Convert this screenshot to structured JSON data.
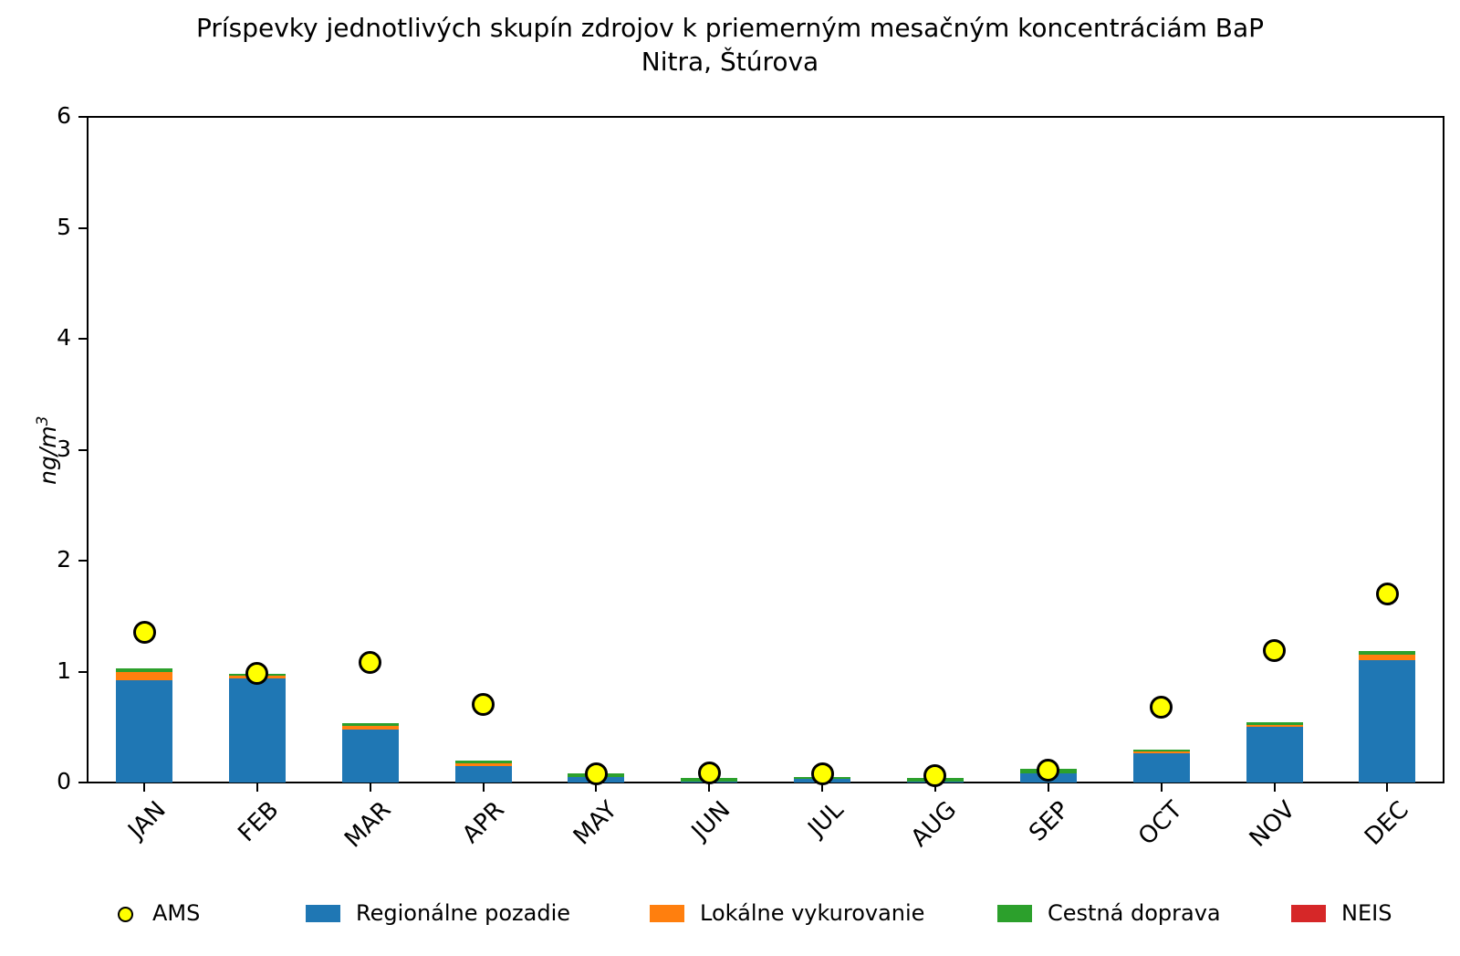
{
  "title": {
    "line1": "Príspevky jednotlivých skupín zdrojov k priemerným mesačným koncentráciám BaP",
    "line2": "Nitra, Štúrova"
  },
  "y_axis": {
    "label": "ng/m³",
    "label_base": "ng/m",
    "label_exp": "3",
    "ticks": [
      0,
      1,
      2,
      3,
      4,
      5,
      6
    ]
  },
  "legend": [
    {
      "label": "AMS",
      "swatch": "circle",
      "color": "#ffff00"
    },
    {
      "label": "Regionálne pozadie",
      "swatch": "rect",
      "color": "#1f77b4"
    },
    {
      "label": "Lokálne vykurovanie",
      "swatch": "rect",
      "color": "#ff7f0e"
    },
    {
      "label": "Cestná doprava",
      "swatch": "rect",
      "color": "#2ca02c"
    },
    {
      "label": "NEIS",
      "swatch": "rect",
      "color": "#d62728"
    }
  ],
  "chart_data": {
    "type": "bar",
    "stacked": true,
    "title": "Príspevky jednotlivých skupín zdrojov k priemerným mesačným koncentráciám BaP — Nitra, Štúrova",
    "xlabel": "",
    "ylabel": "ng/m³",
    "ylim": [
      0,
      6
    ],
    "grid": false,
    "legend_position": "bottom",
    "categories": [
      "JAN",
      "FEB",
      "MAR",
      "APR",
      "MAY",
      "JUN",
      "JUL",
      "AUG",
      "SEP",
      "OCT",
      "NOV",
      "DEC"
    ],
    "series": [
      {
        "name": "Regionálne pozadie",
        "color": "#1f77b4",
        "values": [
          0.92,
          0.94,
          0.48,
          0.15,
          0.05,
          0.01,
          0.03,
          0.01,
          0.085,
          0.26,
          0.5,
          1.1
        ]
      },
      {
        "name": "Lokálne vykurovanie",
        "color": "#ff7f0e",
        "values": [
          0.08,
          0.025,
          0.03,
          0.025,
          0,
          0,
          0,
          0,
          0,
          0.02,
          0.02,
          0.055
        ]
      },
      {
        "name": "Cestná doprava",
        "color": "#2ca02c",
        "values": [
          0.025,
          0.015,
          0.025,
          0.02,
          0.03,
          0.03,
          0.02,
          0.03,
          0.035,
          0.02,
          0.02,
          0.03
        ]
      },
      {
        "name": "NEIS",
        "color": "#d62728",
        "values": [
          0,
          0,
          0,
          0,
          0,
          0,
          0,
          0,
          0,
          0,
          0,
          0
        ]
      }
    ],
    "points": {
      "name": "AMS",
      "marker": "circle",
      "color": "#ffff00",
      "edge_color": "#000000",
      "values": [
        1.35,
        0.98,
        1.08,
        0.7,
        0.08,
        0.09,
        0.08,
        0.06,
        0.11,
        0.68,
        1.19,
        1.7
      ]
    }
  }
}
